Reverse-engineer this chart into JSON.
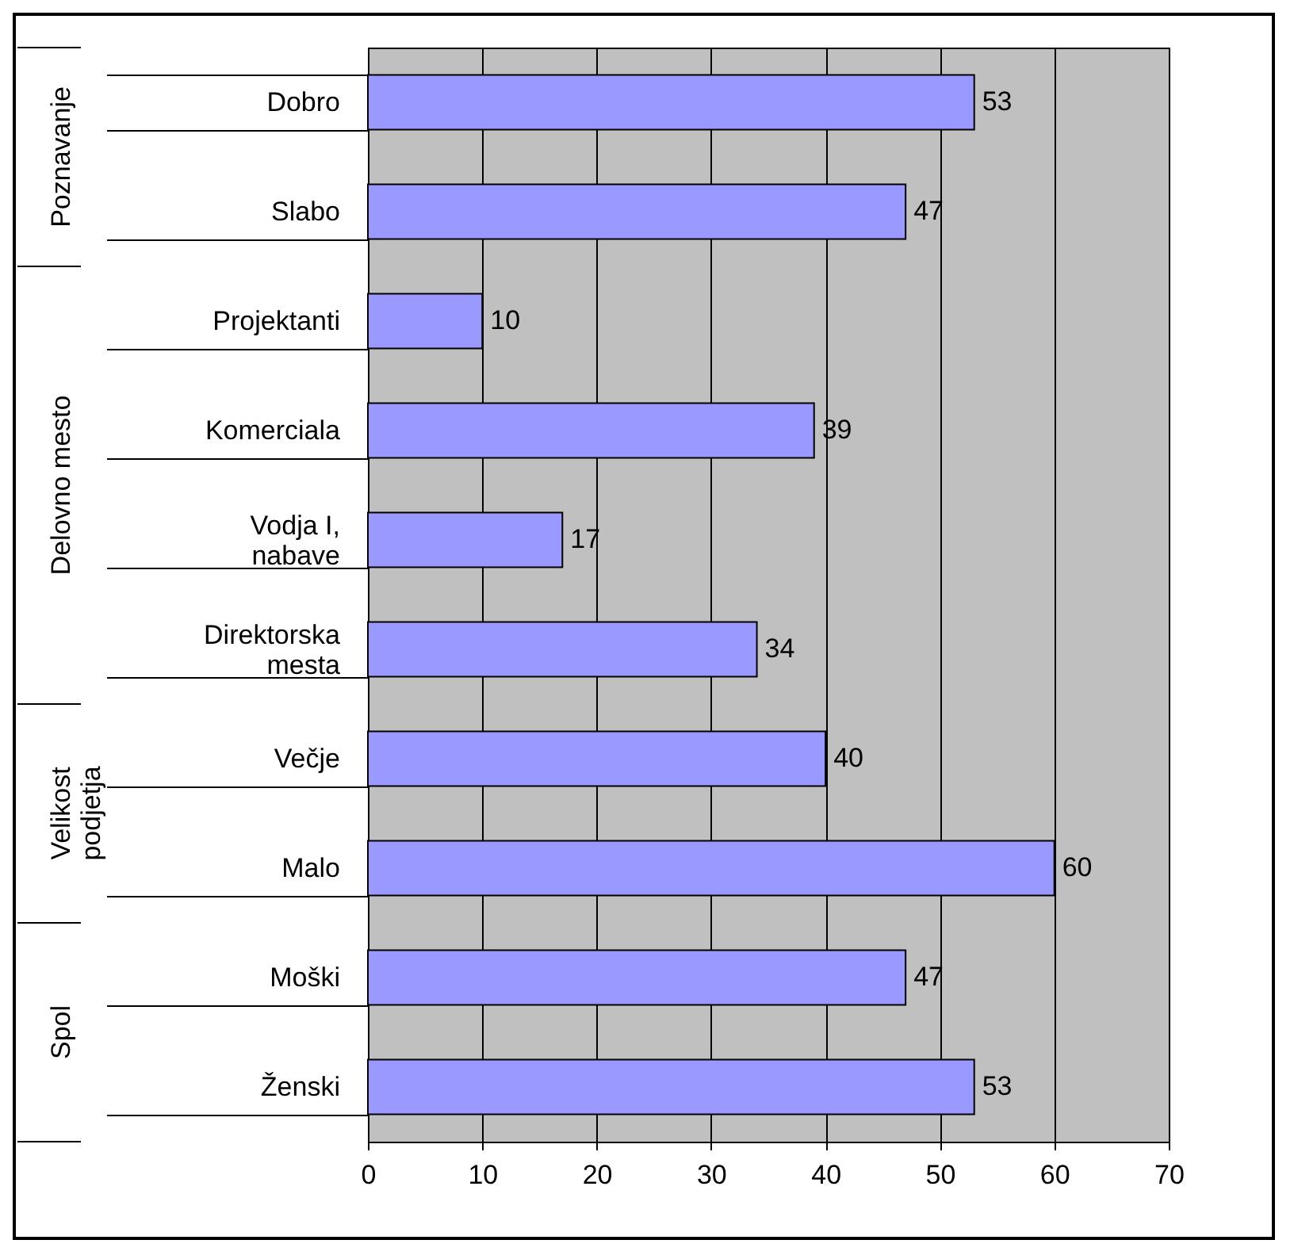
{
  "chart_data": {
    "type": "bar",
    "orientation": "horizontal",
    "categories": [
      "Dobro",
      "Slabo",
      "Projektanti",
      "Komerciala",
      "Vodja I, nabave",
      "Direktorska mesta",
      "Večje",
      "Malo",
      "Moški",
      "Ženski"
    ],
    "values": [
      53,
      47,
      10,
      39,
      17,
      34,
      40,
      60,
      47,
      53
    ],
    "color": "#9999ff",
    "xlim": [
      0,
      70
    ],
    "xticks": [
      0,
      10,
      20,
      30,
      40,
      50,
      60,
      70
    ],
    "grid": "x",
    "data_labels": true,
    "annotations": [
      "Poznavanje",
      "Delovno mesto",
      "Velikost podjetja",
      "Spol"
    ]
  }
}
